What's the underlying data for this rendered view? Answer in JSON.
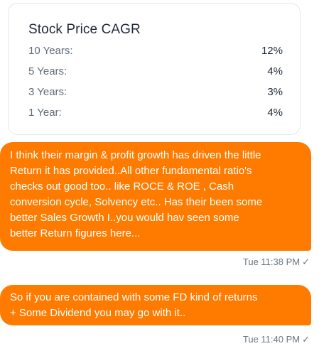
{
  "card": {
    "title": "Stock Price CAGR",
    "rows": [
      {
        "label": "10 Years:",
        "value": "12%"
      },
      {
        "label": "5 Years:",
        "value": "4%"
      },
      {
        "label": "3 Years:",
        "value": "3%"
      },
      {
        "label": "1 Year:",
        "value": "4%"
      }
    ]
  },
  "messages": [
    {
      "lines": [
        "I think their margin & profit growth has driven the little",
        "Return it has provided..All other fundamental ratio's",
        "checks out good too.. like ROCE & ROE , Cash",
        "conversion cycle, Solvency etc..  Has their been some",
        "better Sales Growth I..you would hav seen some",
        "better Return figures here..."
      ],
      "timestamp": "Tue 11:38 PM",
      "status_icon": "single-check-icon"
    },
    {
      "lines": [
        "So if you are contained with some FD kind of returns",
        "+ Some Dividend you may go with it.."
      ],
      "timestamp": "Tue 11:40 PM",
      "status_icon": "single-check-icon"
    }
  ],
  "colors": {
    "bubble": "#ff7b00",
    "bubble_text": "#ffffff",
    "card_border": "#e1e8ed",
    "label_text": "#5f6b76",
    "value_text": "#1f2937",
    "timestamp_text": "#6b7780"
  },
  "icons": {
    "check_glyph": "✓"
  }
}
